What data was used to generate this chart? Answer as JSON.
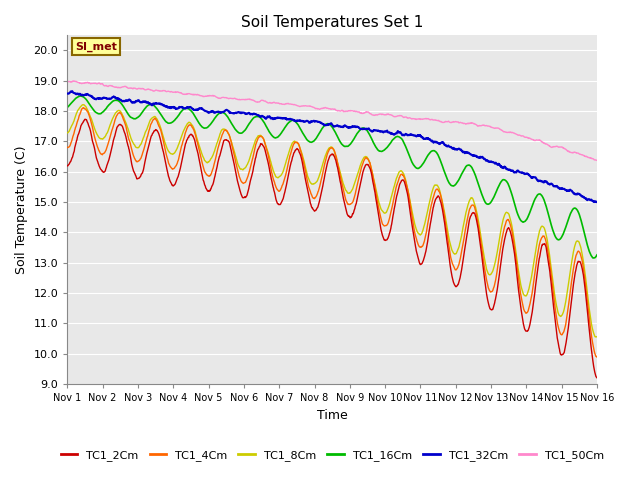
{
  "title": "Soil Temperatures Set 1",
  "xlabel": "Time",
  "ylabel": "Soil Temperature (C)",
  "ylim": [
    9.0,
    20.5
  ],
  "yticks": [
    9.0,
    10.0,
    11.0,
    12.0,
    13.0,
    14.0,
    15.0,
    16.0,
    17.0,
    18.0,
    19.0,
    20.0
  ],
  "xtick_labels": [
    "Nov 1",
    "Nov 2",
    "Nov 3",
    "Nov 4",
    "Nov 5",
    "Nov 6",
    "Nov 7",
    "Nov 8",
    "Nov 9",
    "Nov 10",
    "Nov 11",
    "Nov 12",
    "Nov 13",
    "Nov 14",
    "Nov 15",
    "Nov 16"
  ],
  "legend_labels": [
    "TC1_2Cm",
    "TC1_4Cm",
    "TC1_8Cm",
    "TC1_16Cm",
    "TC1_32Cm",
    "TC1_50Cm"
  ],
  "line_colors": [
    "#cc0000",
    "#ff6600",
    "#cccc00",
    "#00bb00",
    "#0000cc",
    "#ff88cc"
  ],
  "fig_bg_color": "#ffffff",
  "plot_bg_color": "#e8e8e8",
  "grid_color": "#ffffff",
  "annotation_text": "SI_met",
  "annotation_bg": "#ffff99",
  "annotation_border": "#886600",
  "n_points": 1440,
  "n_days": 15
}
